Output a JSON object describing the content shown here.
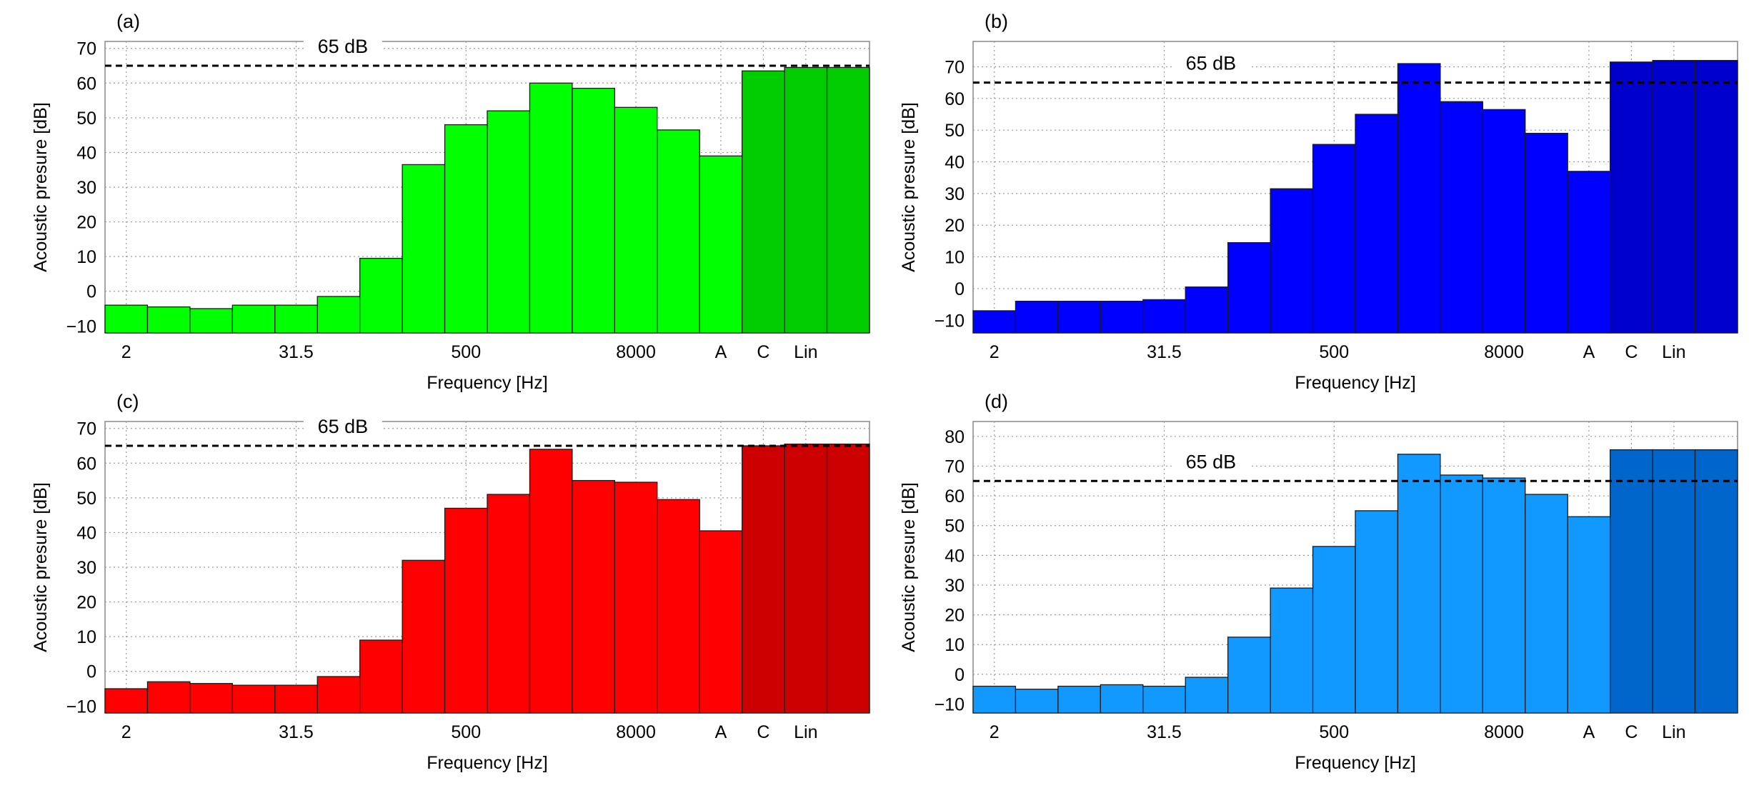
{
  "chart_data": [
    {
      "panel_label": "(a)",
      "type": "bar",
      "xlabel": "Frequency [Hz]",
      "ylabel": "Acoustic presure [dB]",
      "ylim": [
        -12,
        72
      ],
      "yticks": [
        -10,
        0,
        10,
        20,
        30,
        40,
        50,
        60,
        70
      ],
      "xtick_labels": [
        "2",
        "31.5",
        "500",
        "8000",
        "A",
        "C",
        "Lin"
      ],
      "reference_line": {
        "value": 65,
        "label": "65 dB"
      },
      "band_values": [
        -4,
        -4.5,
        -5,
        -4,
        -4,
        -1.5,
        9.5,
        36.5,
        48,
        52,
        60,
        58.5,
        53,
        46.5,
        39
      ],
      "weighted_values": [
        63.5,
        64.5,
        64.5
      ],
      "bar_color": "#00ff00",
      "weighted_color": "#00cc00",
      "grid": true
    },
    {
      "panel_label": "(b)",
      "type": "bar",
      "xlabel": "Frequency [Hz]",
      "ylabel": "Acoustic presure [dB]",
      "ylim": [
        -14,
        78
      ],
      "yticks": [
        -10,
        0,
        10,
        20,
        30,
        40,
        50,
        60,
        70
      ],
      "xtick_labels": [
        "2",
        "31.5",
        "500",
        "8000",
        "A",
        "C",
        "Lin"
      ],
      "reference_line": {
        "value": 65,
        "label": "65 dB"
      },
      "band_values": [
        -7,
        -4,
        -4,
        -4,
        -3.5,
        0.5,
        14.5,
        31.5,
        45.5,
        55,
        71,
        59,
        56.5,
        49,
        37
      ],
      "weighted_values": [
        71.5,
        72,
        72
      ],
      "bar_color": "#0000ff",
      "weighted_color": "#0000cc",
      "grid": true
    },
    {
      "panel_label": "(c)",
      "type": "bar",
      "xlabel": "Frequency [Hz]",
      "ylabel": "Acoustic presure [dB]",
      "ylim": [
        -12,
        72
      ],
      "yticks": [
        -10,
        0,
        10,
        20,
        30,
        40,
        50,
        60,
        70
      ],
      "xtick_labels": [
        "2",
        "31.5",
        "500",
        "8000",
        "A",
        "C",
        "Lin"
      ],
      "reference_line": {
        "value": 65,
        "label": "65 dB"
      },
      "band_values": [
        -5,
        -3,
        -3.5,
        -4,
        -4,
        -1.5,
        9,
        32,
        47,
        51,
        64,
        55,
        54.5,
        49.5,
        40.5
      ],
      "weighted_values": [
        65,
        65.5,
        65.5
      ],
      "bar_color": "#ff0000",
      "weighted_color": "#cc0000",
      "grid": true
    },
    {
      "panel_label": "(d)",
      "type": "bar",
      "xlabel": "Frequency [Hz]",
      "ylabel": "Acoustic presure [dB]",
      "ylim": [
        -13,
        85
      ],
      "yticks": [
        -10,
        0,
        10,
        20,
        30,
        40,
        50,
        60,
        70,
        80
      ],
      "xtick_labels": [
        "2",
        "31.5",
        "500",
        "8000",
        "A",
        "C",
        "Lin"
      ],
      "reference_line": {
        "value": 65,
        "label": "65 dB"
      },
      "band_values": [
        -4,
        -5,
        -4,
        -3.5,
        -4,
        -1,
        12.5,
        29,
        43,
        55,
        74,
        67,
        66,
        60.5,
        53
      ],
      "weighted_values": [
        75.5,
        75.5,
        75.5
      ],
      "bar_color": "#1199ff",
      "weighted_color": "#0066cc",
      "grid": true
    }
  ]
}
